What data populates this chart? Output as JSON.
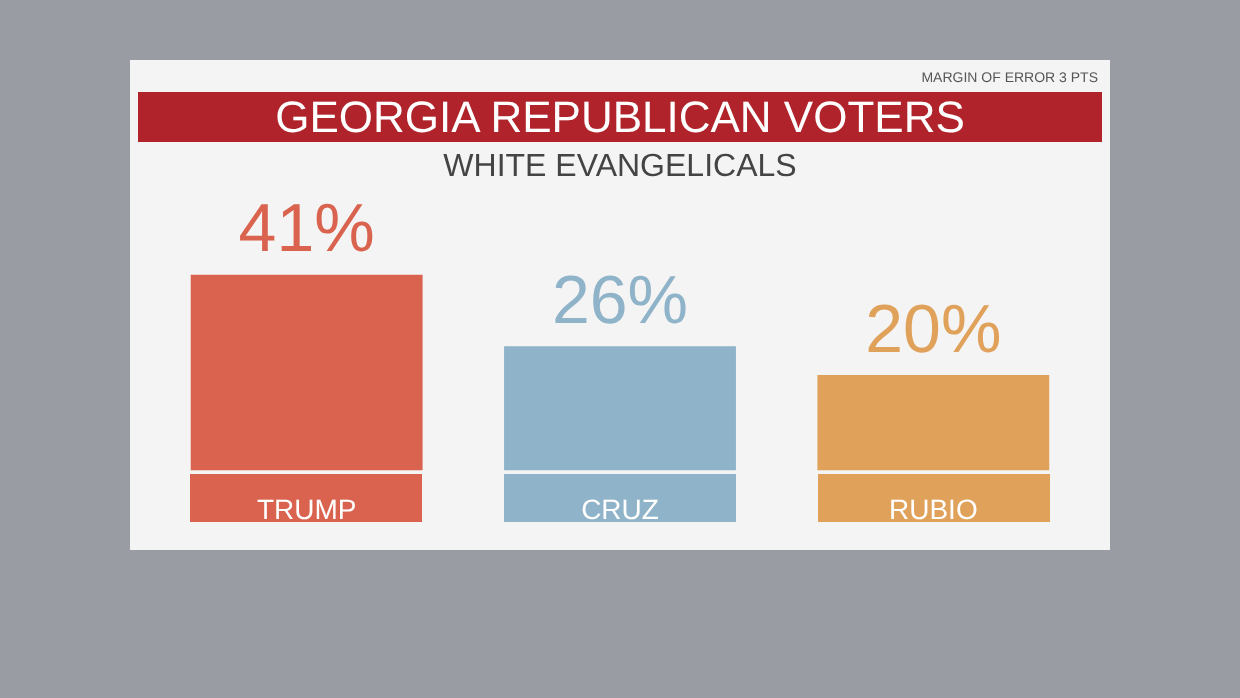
{
  "chart_data": {
    "type": "bar",
    "title": "GEORGIA REPUBLICAN VOTERS",
    "subtitle": "WHITE EVANGELICALS",
    "annotations": [
      "MARGIN OF ERROR 3 PTS"
    ],
    "categories": [
      "TRUMP",
      "CRUZ",
      "RUBIO"
    ],
    "values": [
      41,
      26,
      20
    ],
    "colors": [
      "#d9634e",
      "#8fb3c8",
      "#e0a15a"
    ],
    "value_labels": [
      "41%",
      "26%",
      "20%"
    ]
  }
}
